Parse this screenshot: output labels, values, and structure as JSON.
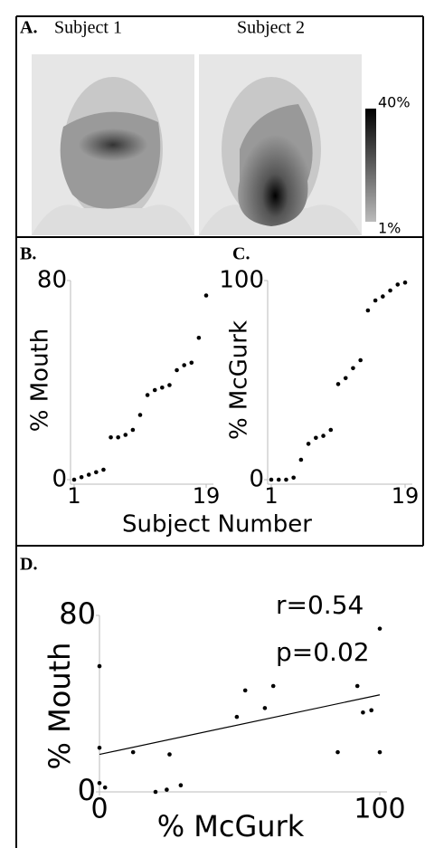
{
  "chart_data": [
    {
      "type": "image",
      "label": "A.",
      "panels": [
        "Subject 1",
        "Subject 2"
      ],
      "colorbar": {
        "lim": [
          1,
          40
        ],
        "ticks": [
          {
            "value": 40,
            "label": "40%"
          },
          {
            "value": 1,
            "label": "1%"
          }
        ]
      }
    },
    {
      "type": "scatter",
      "label": "B.",
      "ylabel": "% Mouth",
      "xlabel": "Subject Number",
      "x": [
        1,
        2,
        3,
        4,
        5,
        6,
        7,
        8,
        9,
        10,
        11,
        12,
        13,
        14,
        15,
        16,
        17,
        18,
        19
      ],
      "values": [
        0,
        1,
        2,
        3,
        4,
        17,
        17,
        18,
        20,
        26,
        34,
        36,
        37,
        38,
        44,
        46,
        47,
        57,
        74
      ],
      "xlim": [
        1,
        19
      ],
      "xticks": [
        1,
        19
      ],
      "ylim": [
        0,
        80
      ],
      "yticks": [
        0,
        80
      ],
      "color": "#000000"
    },
    {
      "type": "scatter",
      "label": "C.",
      "ylabel": "% McGurk",
      "x": [
        1,
        2,
        3,
        4,
        5,
        6,
        7,
        8,
        9,
        10,
        11,
        12,
        13,
        14,
        15,
        16,
        17,
        18,
        19
      ],
      "values": [
        0,
        0,
        0,
        1,
        10,
        18,
        21,
        22,
        25,
        48,
        51,
        56,
        60,
        85,
        90,
        92,
        95,
        98,
        99
      ],
      "xlim": [
        1,
        19
      ],
      "xticks": [
        1,
        19
      ],
      "ylim": [
        0,
        100
      ],
      "yticks": [
        0,
        100
      ],
      "color": "#000000"
    },
    {
      "type": "scatter",
      "label": "D.",
      "ylabel": "% Mouth",
      "xlabel": "% McGurk",
      "annotations": [
        "r=0.54",
        "p=0.02"
      ],
      "x": [
        0,
        0,
        0,
        2,
        12,
        20,
        24,
        25,
        29,
        49,
        52,
        59,
        62,
        85,
        92,
        94,
        97,
        100,
        100
      ],
      "values": [
        57,
        20,
        4,
        2,
        18,
        0,
        1,
        17,
        3,
        34,
        46,
        38,
        48,
        18,
        48,
        36,
        37,
        18,
        74
      ],
      "fit": {
        "x": [
          0,
          100
        ],
        "y": [
          17,
          44
        ]
      },
      "xlim": [
        0,
        100
      ],
      "xticks": [
        0,
        100
      ],
      "ylim": [
        0,
        80
      ],
      "yticks": [
        0,
        80
      ],
      "color": "#000000"
    }
  ]
}
